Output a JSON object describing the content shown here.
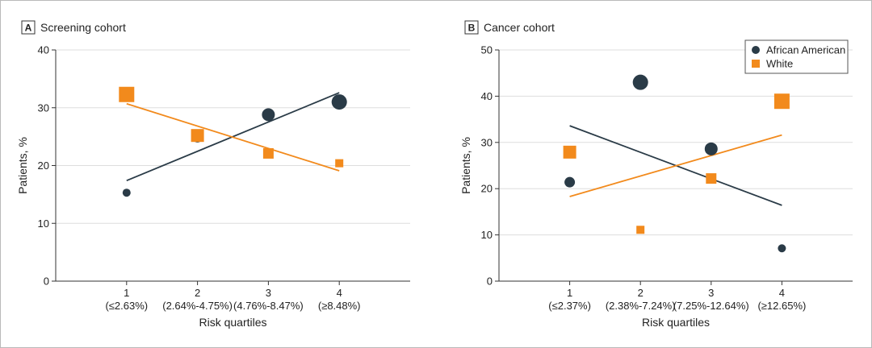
{
  "colors": {
    "african_american": "#2a3b47",
    "white": "#f28a1c",
    "axis": "#333333",
    "grid": "#dddddd"
  },
  "legend": {
    "items": [
      {
        "label": "African American",
        "marker": "circle",
        "color": "#2a3b47"
      },
      {
        "label": "White",
        "marker": "square",
        "color": "#f28a1c"
      }
    ],
    "placement": "top-right of panel B"
  },
  "chart_data": [
    {
      "type": "scatter",
      "panel_letter": "A",
      "title": "Screening cohort",
      "xlabel": "Risk quartiles",
      "ylabel": "Patients, %",
      "x": [
        1,
        2,
        3,
        4
      ],
      "x_ticks": [
        {
          "value": 1,
          "label": "1",
          "sublabel": "(≤2.63%)"
        },
        {
          "value": 2,
          "label": "2",
          "sublabel": "(2.64%-4.75%)"
        },
        {
          "value": 3,
          "label": "3",
          "sublabel": "(4.76%-8.47%)"
        },
        {
          "value": 4,
          "label": "4",
          "sublabel": "(≥8.48%)"
        }
      ],
      "xlim": [
        0,
        5
      ],
      "ylim": [
        0,
        40
      ],
      "y_ticks": [
        0,
        10,
        20,
        30,
        40
      ],
      "grid": true,
      "series": [
        {
          "name": "African American",
          "marker": "circle",
          "color": "#2a3b47",
          "values": [
            15.3,
            24.9,
            28.8,
            31.0
          ],
          "marker_size": [
            1,
            2,
            3,
            4
          ],
          "trend": {
            "x": [
              1,
              4
            ],
            "y": [
              17.4,
              32.6
            ]
          }
        },
        {
          "name": "White",
          "marker": "square",
          "color": "#f28a1c",
          "values": [
            32.3,
            25.2,
            22.1,
            20.4
          ],
          "marker_size": [
            4,
            3,
            2,
            1
          ],
          "trend": {
            "x": [
              1,
              4
            ],
            "y": [
              30.7,
              19.1
            ]
          }
        }
      ]
    },
    {
      "type": "scatter",
      "panel_letter": "B",
      "title": "Cancer cohort",
      "xlabel": "Risk quartiles",
      "ylabel": "Patients, %",
      "x": [
        1,
        2,
        3,
        4
      ],
      "x_ticks": [
        {
          "value": 1,
          "label": "1",
          "sublabel": "(≤2.37%)"
        },
        {
          "value": 2,
          "label": "2",
          "sublabel": "(2.38%-7.24%)"
        },
        {
          "value": 3,
          "label": "3",
          "sublabel": "(7.25%-12.64%)"
        },
        {
          "value": 4,
          "label": "4",
          "sublabel": "(≥12.65%)"
        }
      ],
      "xlim": [
        0,
        5
      ],
      "ylim": [
        0,
        50
      ],
      "y_ticks": [
        0,
        10,
        20,
        30,
        40,
        50
      ],
      "grid": true,
      "series": [
        {
          "name": "African American",
          "marker": "circle",
          "color": "#2a3b47",
          "values": [
            21.4,
            43.0,
            28.6,
            7.1
          ],
          "marker_size": [
            2,
            4,
            3,
            1
          ],
          "trend": {
            "x": [
              1,
              4
            ],
            "y": [
              33.6,
              16.4
            ]
          }
        },
        {
          "name": "White",
          "marker": "square",
          "color": "#f28a1c",
          "values": [
            27.9,
            11.1,
            22.2,
            38.9
          ],
          "marker_size": [
            3,
            1,
            2,
            4
          ],
          "trend": {
            "x": [
              1,
              4
            ],
            "y": [
              18.3,
              31.6
            ]
          }
        }
      ]
    }
  ]
}
